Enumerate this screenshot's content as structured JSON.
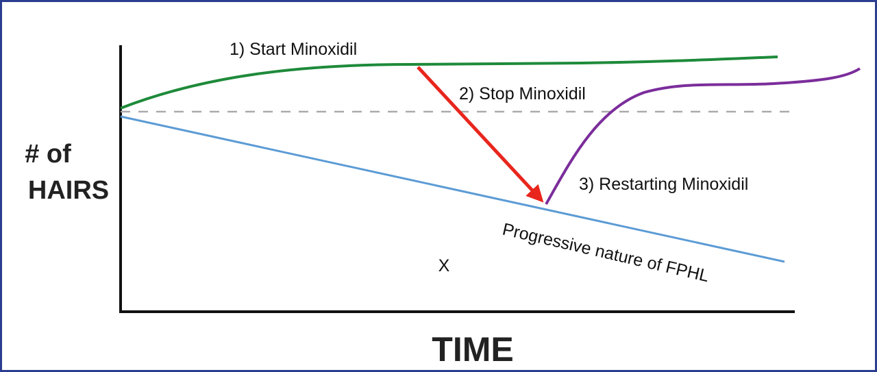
{
  "y_axis_label": {
    "lines": [
      "# of",
      "HAIRS"
    ]
  },
  "x_axis_label": "TIME",
  "annotations": {
    "start": "1) Start Minoxidil",
    "stop": "2) Stop Minoxidil",
    "restart": "3) Restarting Minoxidil",
    "progressive": "Progressive nature of FPHL"
  },
  "marker": "X"
}
